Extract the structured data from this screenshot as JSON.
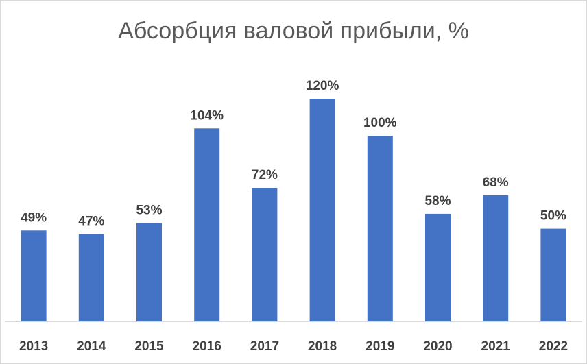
{
  "chart_data": {
    "type": "bar",
    "title": "Абсорбция валовой прибыли, %",
    "categories": [
      "2013",
      "2014",
      "2015",
      "2016",
      "2017",
      "2018",
      "2019",
      "2020",
      "2021",
      "2022"
    ],
    "values": [
      49,
      47,
      53,
      104,
      72,
      120,
      100,
      58,
      68,
      50
    ],
    "data_labels": [
      "49%",
      "47%",
      "53%",
      "104%",
      "72%",
      "120%",
      "100%",
      "58%",
      "68%",
      "50%"
    ],
    "xlabel": "",
    "ylabel": "",
    "ylim": [
      0,
      120
    ],
    "grid": false,
    "legend": "none",
    "colors": {
      "bar": "#4472c4",
      "axis": "#d9d9d9",
      "text": "#404040",
      "title": "#595959"
    }
  }
}
